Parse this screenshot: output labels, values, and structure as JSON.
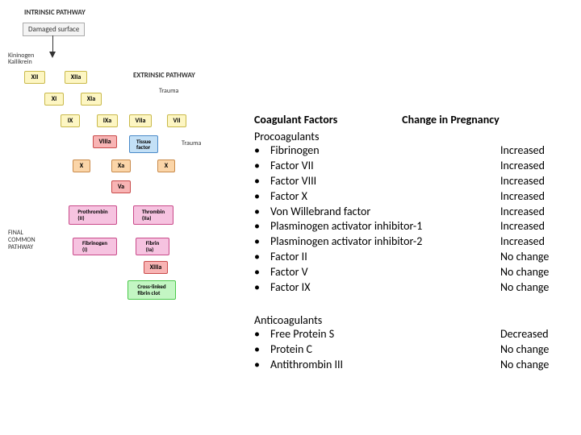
{
  "diagram": {
    "title_intrinsic": "INTRINSIC PATHWAY",
    "title_extrinsic": "EXTRINSIC PATHWAY",
    "damaged": "Damaged surface",
    "trauma1": "Trauma",
    "trauma2": "Trauma",
    "kininogen": "Kininogen",
    "kallikrein": "Kallikrein",
    "final": "FINAL\nCOMMON\nPATHWAY",
    "xii": "XII",
    "xiia": "XIIa",
    "xi": "XI",
    "xia": "XIa",
    "ix": "IX",
    "ixa": "IXa",
    "viiia": "VIIIa",
    "viia": "VIIa",
    "vii": "VII",
    "tf": "Tissue\nfactor",
    "x1": "X",
    "xa": "Xa",
    "x2": "X",
    "va": "Va",
    "pro": "Prothrombin\n(II)",
    "thr": "Thrombin\n(IIa)",
    "fib": "Fibrinogen\n(I)",
    "fibr": "Fibrin\n(Ia)",
    "xiiia": "XIIIa",
    "clot": "Cross-linked\nfibrin clot"
  },
  "table": {
    "header_left": "Coagulant Factors",
    "header_right": "Change in Pregnancy",
    "pro_header": "Procoagulants",
    "anti_header": "Anticoagulants",
    "pro_items": [
      {
        "factor": "Fibrinogen",
        "change": "Increased"
      },
      {
        "factor": "Factor VII",
        "change": "Increased"
      },
      {
        "factor": "Factor VIII",
        "change": "Increased"
      },
      {
        "factor": "Factor X",
        "change": "Increased"
      },
      {
        "factor": "Von Willebrand factor",
        "change": "Increased"
      },
      {
        "factor": "Plasminogen activator inhibitor-1",
        "change": "Increased"
      },
      {
        "factor": "Plasminogen activator inhibitor-2",
        "change": "Increased"
      },
      {
        "factor": "Factor II",
        "change": "No change"
      },
      {
        "factor": "Factor V",
        "change": "No change"
      },
      {
        "factor": "Factor IX",
        "change": "No change"
      }
    ],
    "anti_items": [
      {
        "factor": "Free Protein S",
        "change": "Decreased"
      },
      {
        "factor": "Protein C",
        "change": "No change"
      },
      {
        "factor": "Antithrombin III",
        "change": "No change"
      }
    ]
  },
  "colors": {
    "yellow": "#fdf6c3",
    "red": "#f8b4b4",
    "orange": "#fbd5a8",
    "blue": "#c3e0f6",
    "pink": "#f6c3e0",
    "green": "#c3f6c3"
  }
}
